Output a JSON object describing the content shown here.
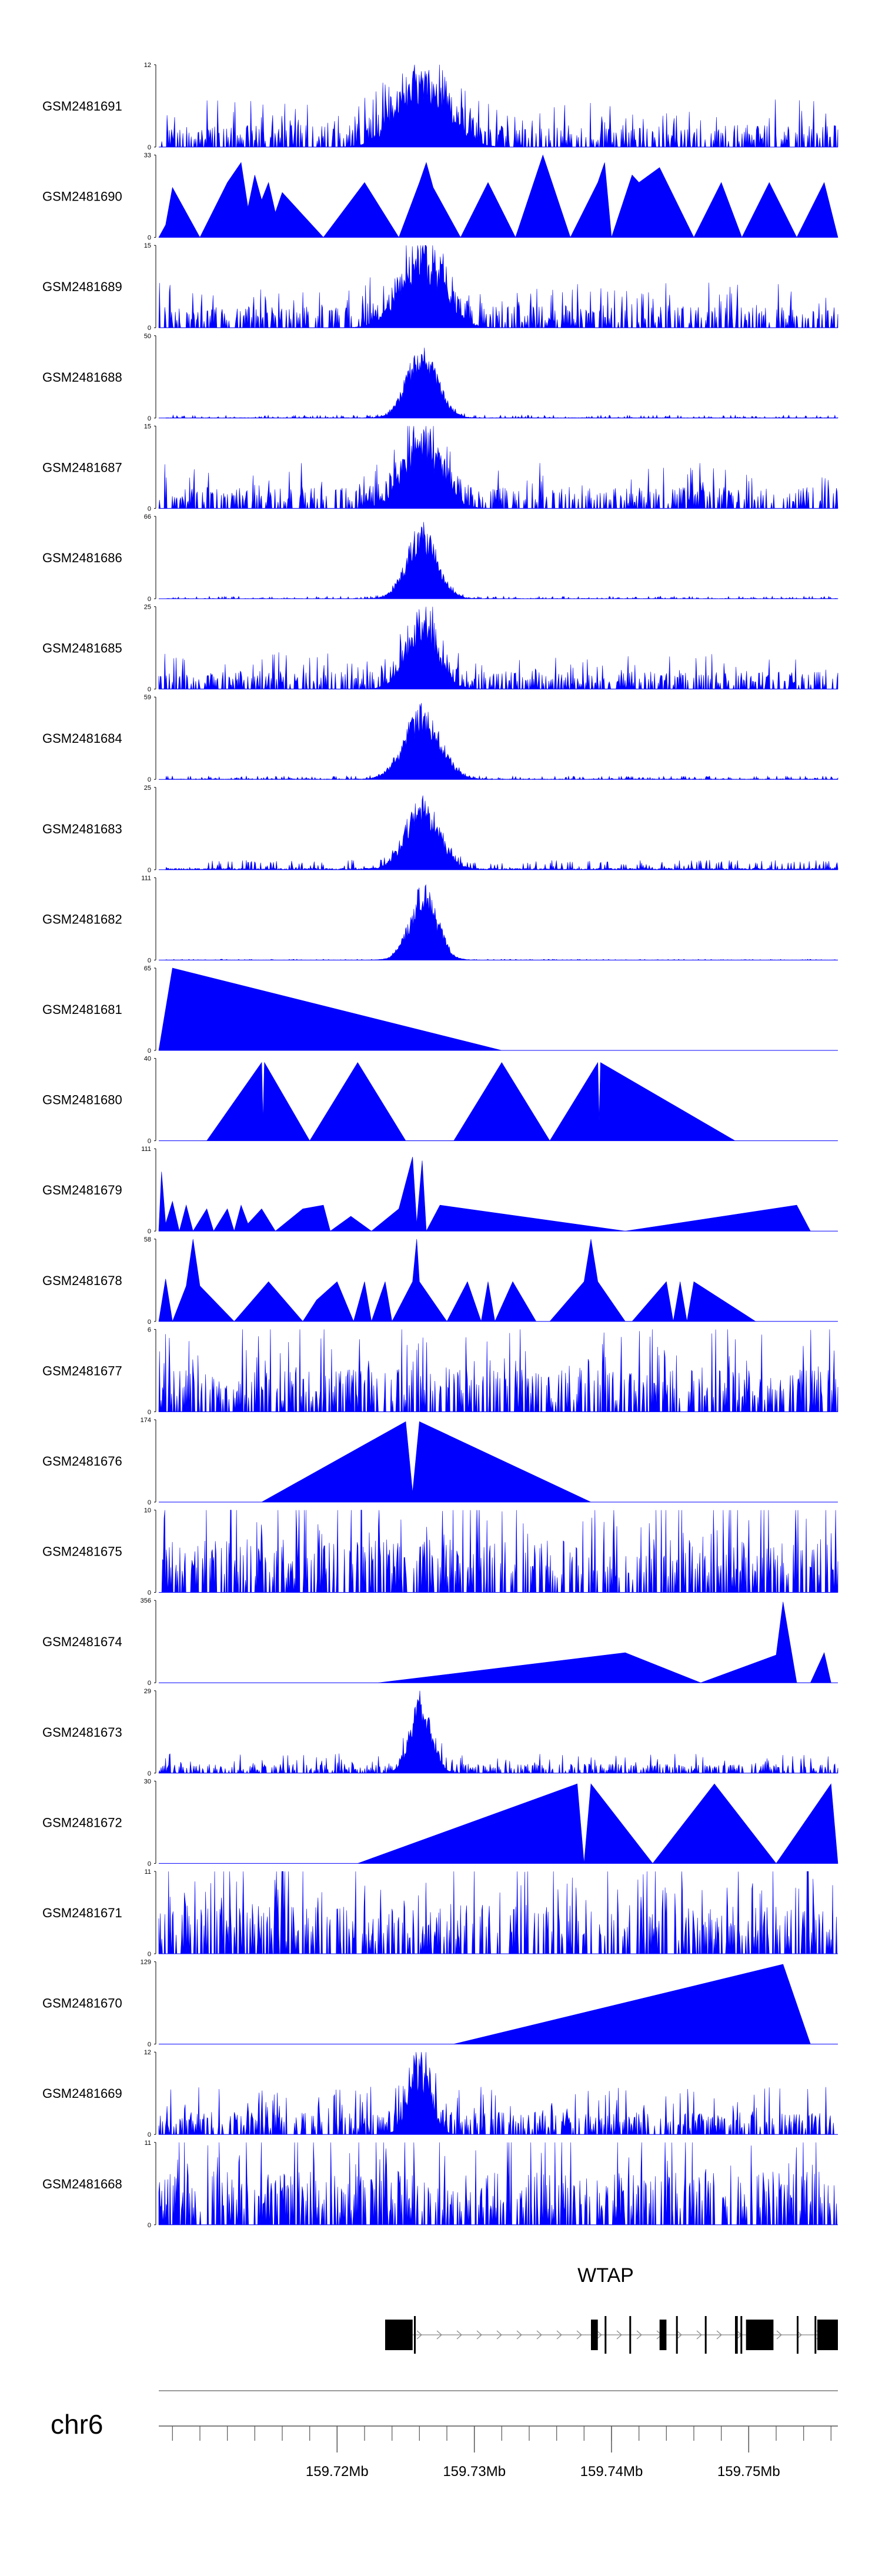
{
  "chart_data": {
    "type": "area",
    "chromosome": "chr6",
    "x_range_mb": [
      159.707,
      159.7565
    ],
    "x_ticks": [
      "159.72Mb",
      "159.73Mb",
      "159.74Mb",
      "159.75Mb"
    ],
    "x_tick_values_mb": [
      159.72,
      159.73,
      159.74,
      159.75
    ],
    "gene": {
      "name": "WTAP",
      "start_mb": 159.7235,
      "end_mb": 159.7565,
      "exons_mb": [
        [
          159.7235,
          159.7255
        ],
        [
          159.7256,
          159.7257
        ],
        [
          159.7385,
          159.739
        ],
        [
          159.7395,
          159.7396
        ],
        [
          159.7413,
          159.7414
        ],
        [
          159.7435,
          159.744
        ],
        [
          159.7447,
          159.7448
        ],
        [
          159.7468,
          159.7469
        ],
        [
          159.749,
          159.7492
        ],
        [
          159.7494,
          159.7495
        ],
        [
          159.7498,
          159.7518
        ],
        [
          159.7535,
          159.7536
        ],
        [
          159.7548,
          159.7549
        ],
        [
          159.755,
          159.7565
        ]
      ]
    },
    "tracks": [
      {
        "name": "GSM2481691",
        "ymax": 12,
        "ymin_label": "0",
        "ymax_label": "12",
        "kind": "dense",
        "noise": 2.5,
        "peak": 11,
        "peak_pos": 159.7262,
        "peak_width": 0.0018
      },
      {
        "name": "GSM2481690",
        "ymax": 33,
        "ymin_label": "0",
        "ymax_label": "33",
        "kind": "spiky",
        "points": [
          [
            159.707,
            0
          ],
          [
            159.7075,
            5
          ],
          [
            159.708,
            20
          ],
          [
            159.71,
            0
          ],
          [
            159.712,
            22
          ],
          [
            159.713,
            30
          ],
          [
            159.7135,
            12
          ],
          [
            159.714,
            25
          ],
          [
            159.7145,
            15
          ],
          [
            159.715,
            22
          ],
          [
            159.7155,
            10
          ],
          [
            159.716,
            18
          ],
          [
            159.719,
            0
          ],
          [
            159.722,
            22
          ],
          [
            159.7245,
            0
          ],
          [
            159.726,
            22
          ],
          [
            159.7265,
            30
          ],
          [
            159.727,
            20
          ],
          [
            159.729,
            0
          ],
          [
            159.731,
            22
          ],
          [
            159.733,
            0
          ],
          [
            159.735,
            33
          ],
          [
            159.737,
            0
          ],
          [
            159.739,
            22
          ],
          [
            159.7395,
            30
          ],
          [
            159.74,
            0
          ],
          [
            159.7415,
            25
          ],
          [
            159.742,
            22
          ],
          [
            159.7435,
            28
          ],
          [
            159.746,
            0
          ],
          [
            159.748,
            22
          ],
          [
            159.7495,
            0
          ],
          [
            159.7515,
            22
          ],
          [
            159.7535,
            0
          ],
          [
            159.7555,
            22
          ],
          [
            159.7565,
            0
          ]
        ]
      },
      {
        "name": "GSM2481689",
        "ymax": 15,
        "ymin_label": "0",
        "ymax_label": "15",
        "kind": "dense",
        "noise": 3.0,
        "peak": 14,
        "peak_pos": 159.7262,
        "peak_width": 0.0016
      },
      {
        "name": "GSM2481688",
        "ymax": 50,
        "ymin_label": "0",
        "ymax_label": "50",
        "kind": "peak",
        "noise": 1.8,
        "peak": 48,
        "peak_pos": 159.7262,
        "peak_width": 0.0011
      },
      {
        "name": "GSM2481687",
        "ymax": 15,
        "ymin_label": "0",
        "ymax_label": "15",
        "kind": "dense",
        "noise": 3.0,
        "peak": 14,
        "peak_pos": 159.7262,
        "peak_width": 0.0014
      },
      {
        "name": "GSM2481686",
        "ymax": 66,
        "ymin_label": "0",
        "ymax_label": "66",
        "kind": "peak",
        "noise": 2.0,
        "peak": 62,
        "peak_pos": 159.7262,
        "peak_width": 0.0011
      },
      {
        "name": "GSM2481685",
        "ymax": 25,
        "ymin_label": "0",
        "ymax_label": "25",
        "kind": "dense",
        "noise": 4.0,
        "peak": 22,
        "peak_pos": 159.7262,
        "peak_width": 0.0012
      },
      {
        "name": "GSM2481684",
        "ymax": 59,
        "ymin_label": "0",
        "ymax_label": "59",
        "kind": "peak",
        "noise": 2.5,
        "peak": 55,
        "peak_pos": 159.7262,
        "peak_width": 0.0013
      },
      {
        "name": "GSM2481683",
        "ymax": 25,
        "ymin_label": "0",
        "ymax_label": "25",
        "kind": "peak",
        "noise": 3.0,
        "peak": 23,
        "peak_pos": 159.7262,
        "peak_width": 0.0012
      },
      {
        "name": "GSM2481682",
        "ymax": 111,
        "ymin_label": "0",
        "ymax_label": "111",
        "kind": "peak",
        "noise": 1.2,
        "peak": 105,
        "peak_pos": 159.7263,
        "peak_width": 0.001
      },
      {
        "name": "GSM2481681",
        "ymax": 65,
        "ymin_label": "0",
        "ymax_label": "65",
        "kind": "spiky",
        "points": [
          [
            159.707,
            0
          ],
          [
            159.708,
            65
          ],
          [
            159.732,
            0
          ]
        ]
      },
      {
        "name": "GSM2481680",
        "ymax": 40,
        "ymin_label": "0",
        "ymax_label": "40",
        "kind": "spiky",
        "points": [
          [
            159.7105,
            0
          ],
          [
            159.7145,
            38
          ],
          [
            159.7146,
            10
          ],
          [
            159.7147,
            38
          ],
          [
            159.718,
            0
          ],
          [
            159.7215,
            38
          ],
          [
            159.725,
            0
          ],
          [
            159.7285,
            0
          ],
          [
            159.732,
            38
          ],
          [
            159.7355,
            0
          ],
          [
            159.739,
            38
          ],
          [
            159.7391,
            10
          ],
          [
            159.7392,
            38
          ],
          [
            159.749,
            0
          ]
        ]
      },
      {
        "name": "GSM2481679",
        "ymax": 111,
        "ymin_label": "0",
        "ymax_label": "111",
        "kind": "spiky",
        "points": [
          [
            159.707,
            0
          ],
          [
            159.7072,
            80
          ],
          [
            159.7075,
            10
          ],
          [
            159.708,
            40
          ],
          [
            159.7085,
            0
          ],
          [
            159.709,
            35
          ],
          [
            159.7095,
            0
          ],
          [
            159.7105,
            30
          ],
          [
            159.711,
            0
          ],
          [
            159.712,
            30
          ],
          [
            159.7125,
            0
          ],
          [
            159.713,
            35
          ],
          [
            159.7135,
            10
          ],
          [
            159.7145,
            30
          ],
          [
            159.7155,
            0
          ],
          [
            159.7175,
            30
          ],
          [
            159.719,
            35
          ],
          [
            159.7195,
            0
          ],
          [
            159.721,
            20
          ],
          [
            159.7225,
            0
          ],
          [
            159.7245,
            30
          ],
          [
            159.7255,
            100
          ],
          [
            159.7258,
            10
          ],
          [
            159.7262,
            95
          ],
          [
            159.7265,
            0
          ],
          [
            159.7275,
            35
          ],
          [
            159.741,
            0
          ],
          [
            159.7535,
            35
          ],
          [
            159.7545,
            0
          ]
        ]
      },
      {
        "name": "GSM2481678",
        "ymax": 58,
        "ymin_label": "0",
        "ymax_label": "58",
        "kind": "spiky",
        "points": [
          [
            159.707,
            0
          ],
          [
            159.7075,
            30
          ],
          [
            159.708,
            0
          ],
          [
            159.709,
            25
          ],
          [
            159.7095,
            58
          ],
          [
            159.71,
            25
          ],
          [
            159.7125,
            0
          ],
          [
            159.715,
            28
          ],
          [
            159.7175,
            0
          ],
          [
            159.7185,
            15
          ],
          [
            159.72,
            28
          ],
          [
            159.7212,
            0
          ],
          [
            159.722,
            28
          ],
          [
            159.7225,
            0
          ],
          [
            159.7235,
            28
          ],
          [
            159.724,
            0
          ],
          [
            159.7255,
            28
          ],
          [
            159.7258,
            58
          ],
          [
            159.726,
            28
          ],
          [
            159.728,
            0
          ],
          [
            159.7295,
            28
          ],
          [
            159.7305,
            0
          ],
          [
            159.731,
            28
          ],
          [
            159.7315,
            0
          ],
          [
            159.7328,
            28
          ],
          [
            159.7345,
            0
          ],
          [
            159.7355,
            0
          ],
          [
            159.738,
            28
          ],
          [
            159.7385,
            58
          ],
          [
            159.739,
            28
          ],
          [
            159.741,
            0
          ],
          [
            159.7415,
            0
          ],
          [
            159.744,
            28
          ],
          [
            159.7445,
            0
          ],
          [
            159.745,
            28
          ],
          [
            159.7455,
            0
          ],
          [
            159.746,
            28
          ],
          [
            159.7505,
            0
          ]
        ]
      },
      {
        "name": "GSM2481677",
        "ymax": 6,
        "ymin_label": "0",
        "ymax_label": "6",
        "kind": "dense",
        "noise": 2.4,
        "peak": 0,
        "peak_pos": 159.7262,
        "peak_width": 0.001
      },
      {
        "name": "GSM2481676",
        "ymax": 174,
        "ymin_label": "0",
        "ymax_label": "174",
        "kind": "spiky",
        "points": [
          [
            159.7145,
            0
          ],
          [
            159.725,
            170
          ],
          [
            159.7255,
            20
          ],
          [
            159.726,
            170
          ],
          [
            159.7385,
            0
          ]
        ]
      },
      {
        "name": "GSM2481675",
        "ymax": 10,
        "ymin_label": "0",
        "ymax_label": "10",
        "kind": "dense",
        "noise": 5.0,
        "peak": 0,
        "peak_pos": 159.7262,
        "peak_width": 0.001
      },
      {
        "name": "GSM2481674",
        "ymax": 356,
        "ymin_label": "0",
        "ymax_label": "356",
        "kind": "spiky",
        "points": [
          [
            159.723,
            0
          ],
          [
            159.741,
            130
          ],
          [
            159.7465,
            0
          ],
          [
            159.752,
            120
          ],
          [
            159.7525,
            350
          ],
          [
            159.7535,
            0
          ],
          [
            159.7545,
            0
          ],
          [
            159.7555,
            130
          ],
          [
            159.756,
            0
          ]
        ]
      },
      {
        "name": "GSM2481673",
        "ymax": 29,
        "ymin_label": "0",
        "ymax_label": "29",
        "kind": "dense",
        "noise": 2.5,
        "peak": 27,
        "peak_pos": 159.7261,
        "peak_width": 0.0008
      },
      {
        "name": "GSM2481672",
        "ymax": 30,
        "ymin_label": "0",
        "ymax_label": "30",
        "kind": "spiky",
        "points": [
          [
            159.7215,
            0
          ],
          [
            159.7375,
            29
          ],
          [
            159.738,
            0
          ],
          [
            159.7385,
            29
          ],
          [
            159.743,
            0
          ],
          [
            159.7475,
            29
          ],
          [
            159.752,
            0
          ],
          [
            159.756,
            29
          ],
          [
            159.7565,
            0
          ]
        ]
      },
      {
        "name": "GSM2481671",
        "ymax": 11,
        "ymin_label": "0",
        "ymax_label": "11",
        "kind": "dense",
        "noise": 5.0,
        "peak": 0,
        "peak_pos": 159.7262,
        "peak_width": 0.001
      },
      {
        "name": "GSM2481670",
        "ymax": 129,
        "ymin_label": "0",
        "ymax_label": "129",
        "kind": "spiky",
        "points": [
          [
            159.7285,
            0
          ],
          [
            159.7525,
            125
          ],
          [
            159.7545,
            0
          ]
        ]
      },
      {
        "name": "GSM2481669",
        "ymax": 12,
        "ymin_label": "0",
        "ymax_label": "12",
        "kind": "dense",
        "noise": 2.5,
        "peak": 11,
        "peak_pos": 159.726,
        "peak_width": 0.0008
      },
      {
        "name": "GSM2481668",
        "ymax": 11,
        "ymin_label": "0",
        "ymax_label": "11",
        "kind": "dense",
        "noise": 5.5,
        "peak": 0,
        "peak_pos": 159.7262,
        "peak_width": 0.001
      }
    ]
  }
}
